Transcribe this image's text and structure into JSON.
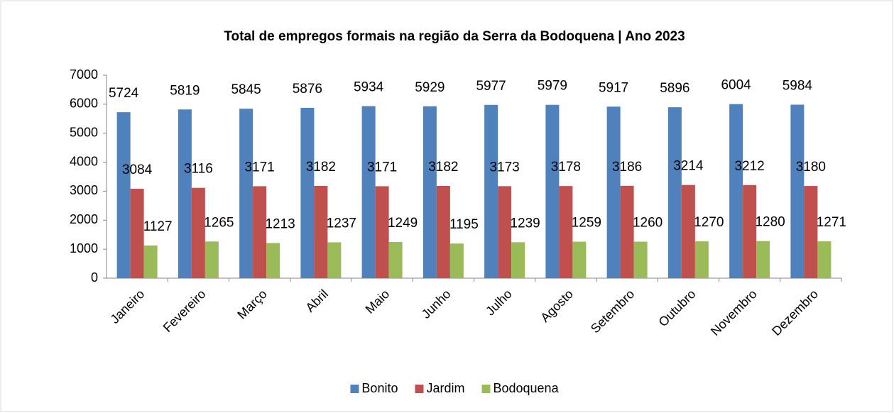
{
  "chart_data": {
    "type": "bar",
    "title": "Total  de empregos formais na região da  Serra da Bodoquena | Ano 2023",
    "categories": [
      "Janeiro",
      "Fevereiro",
      "Março",
      "Abril",
      "Maio",
      "Junho",
      "Julho",
      "Agosto",
      "Setembro",
      "Outubro",
      "Novembro",
      "Dezembro"
    ],
    "series": [
      {
        "name": "Bonito",
        "color": "#4f81bd",
        "values": [
          5724,
          5819,
          5845,
          5876,
          5934,
          5929,
          5977,
          5979,
          5917,
          5896,
          6004,
          5984
        ]
      },
      {
        "name": "Jardim",
        "color": "#c0504d",
        "values": [
          3084,
          3116,
          3171,
          3182,
          3171,
          3182,
          3173,
          3178,
          3186,
          3214,
          3212,
          3180
        ]
      },
      {
        "name": "Bodoquena",
        "color": "#9bbb59",
        "values": [
          1127,
          1265,
          1213,
          1237,
          1249,
          1195,
          1239,
          1259,
          1260,
          1270,
          1280,
          1271
        ]
      }
    ],
    "ylim": [
      0,
      7000
    ],
    "yticks": [
      0,
      1000,
      2000,
      3000,
      4000,
      5000,
      6000,
      7000
    ],
    "grid": false,
    "legend": "bottom"
  }
}
